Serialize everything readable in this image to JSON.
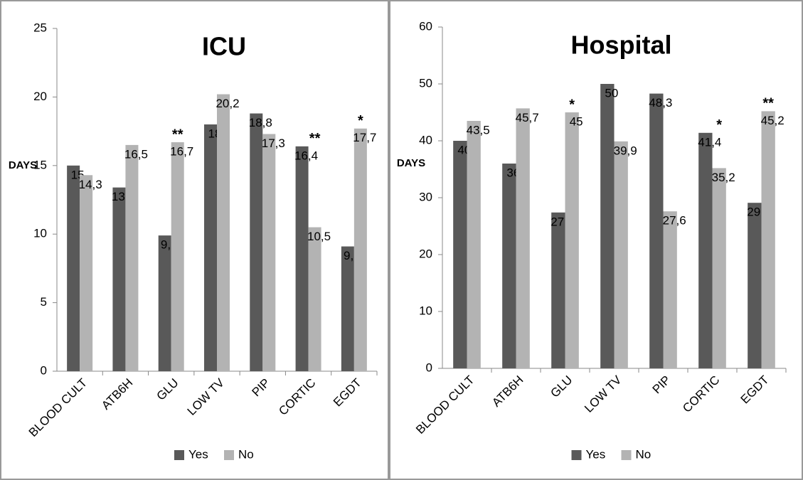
{
  "chart_data": [
    {
      "type": "bar",
      "title": "ICU",
      "y_label": "DAYS",
      "categories": [
        "BLOOD CULT",
        "ATB6H",
        "GLU",
        "LOW TV",
        "PIP",
        "CORTIC",
        "EGDT"
      ],
      "series": [
        {
          "name": "Yes",
          "color": "#595959",
          "values": [
            15,
            13.4,
            9.9,
            18,
            18.8,
            16.4,
            9.1
          ],
          "value_labels": [
            "15",
            "13,4",
            "9,9",
            "18",
            "18,8",
            "16,4",
            "9,1"
          ]
        },
        {
          "name": "No",
          "color": "#b3b3b3",
          "values": [
            14.3,
            16.5,
            16.7,
            20.2,
            17.3,
            10.5,
            17.7
          ],
          "value_labels": [
            "14,3",
            "16,5",
            "16,7",
            "20,2",
            "17,3",
            "10,5",
            "17,7"
          ]
        }
      ],
      "significance": [
        null,
        null,
        "**",
        null,
        null,
        "**",
        "*"
      ],
      "ylim": [
        0,
        25
      ],
      "yticks": [
        0,
        5,
        10,
        15,
        20,
        25
      ],
      "legend": "bottom"
    },
    {
      "type": "bar",
      "title": "Hospital",
      "y_label": "DAYS",
      "categories": [
        "BLOOD CULT",
        "ATB6H",
        "GLU",
        "LOW TV",
        "PIP",
        "CORTIC",
        "EGDT"
      ],
      "series": [
        {
          "name": "Yes",
          "color": "#595959",
          "values": [
            40,
            36,
            27.4,
            50,
            48.3,
            41.4,
            29.1
          ],
          "value_labels": [
            "40",
            "36",
            "27,4",
            "50",
            "48,3",
            "41,4",
            "29,1"
          ]
        },
        {
          "name": "No",
          "color": "#b3b3b3",
          "values": [
            43.5,
            45.7,
            45,
            39.9,
            27.6,
            35.2,
            45.2
          ],
          "value_labels": [
            "43,5",
            "45,7",
            "45",
            "39,9",
            "27,6",
            "35,2",
            "45,2"
          ]
        }
      ],
      "significance": [
        null,
        null,
        "*",
        null,
        null,
        "*",
        "**"
      ],
      "ylim": [
        0,
        60
      ],
      "yticks": [
        0,
        10,
        20,
        30,
        40,
        50,
        60
      ],
      "legend": "bottom"
    }
  ]
}
